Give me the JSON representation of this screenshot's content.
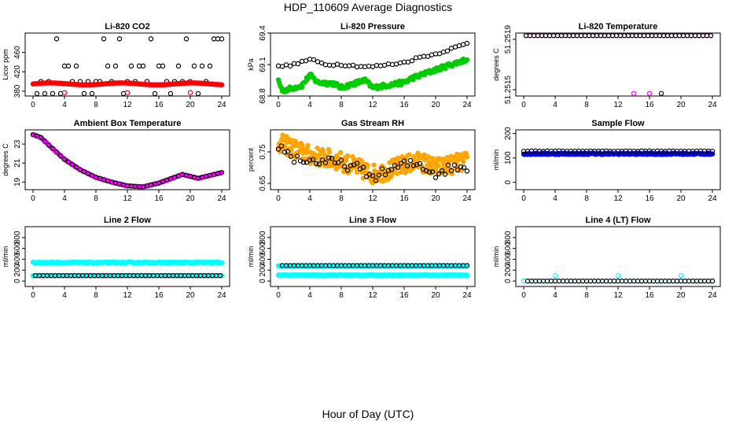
{
  "figure": {
    "title": "HDP_110609  Average Diagnostics",
    "xlabel": "Hour of Day (UTC)"
  },
  "chart_data": [
    {
      "type": "scatter",
      "title": "Li-820 CO2",
      "ylabel": "Licor ppm",
      "xlim": [
        -1,
        25
      ],
      "ylim": [
        370,
        500
      ],
      "xticks": [
        0,
        4,
        8,
        12,
        16,
        20,
        24
      ],
      "yticks": [
        380,
        420,
        460
      ],
      "series": [
        {
          "color": "#000000",
          "style": "ring",
          "pattern": "step_levels",
          "levels": [
            375,
            400,
            432,
            488
          ],
          "x_start": 0.5,
          "x_end": 24,
          "x_step": 0.5
        },
        {
          "color": "#ff0000",
          "style": "dot",
          "pattern": "wave",
          "x_start": 0,
          "x_end": 24,
          "x_step": 0.1,
          "y_base": 395,
          "y_amp": 2,
          "y_period": 9
        },
        {
          "color": "#ff0000",
          "style": "ring",
          "points": [
            [
              4,
              377
            ],
            [
              12,
              377
            ],
            [
              20,
              377
            ]
          ]
        }
      ]
    },
    {
      "type": "scatter",
      "title": "Li-820 Pressure",
      "ylabel": "kPa",
      "xlim": [
        -1,
        25
      ],
      "ylim": [
        68.8,
        69.4
      ],
      "xticks": [
        0,
        4,
        8,
        12,
        16,
        20,
        24
      ],
      "yticks": [
        68.8,
        69.1,
        69.4
      ],
      "series": [
        {
          "color": "#00cc00",
          "style": "dot",
          "pattern": "line_points",
          "anchors": [
            [
              0,
              68.95
            ],
            [
              0.5,
              68.85
            ],
            [
              3,
              68.9
            ],
            [
              4,
              69.0
            ],
            [
              5,
              68.93
            ],
            [
              7,
              68.92
            ],
            [
              8,
              68.88
            ],
            [
              11,
              68.95
            ],
            [
              12,
              68.88
            ],
            [
              16,
              68.93
            ],
            [
              17,
              68.97
            ],
            [
              20,
              69.05
            ],
            [
              22,
              69.1
            ],
            [
              24,
              69.15
            ]
          ],
          "x_step": 0.12,
          "jitter": 0.02
        },
        {
          "color": "#000000",
          "style": "ring",
          "pattern": "line_points",
          "anchors": [
            [
              0,
              69.08
            ],
            [
              2,
              69.1
            ],
            [
              4,
              69.15
            ],
            [
              6,
              69.1
            ],
            [
              8,
              69.1
            ],
            [
              11,
              69.08
            ],
            [
              12,
              69.08
            ],
            [
              14,
              69.1
            ],
            [
              16,
              69.12
            ],
            [
              18,
              69.17
            ],
            [
              20,
              69.2
            ],
            [
              22,
              69.25
            ],
            [
              24,
              69.3
            ]
          ],
          "x_step": 0.5,
          "jitter": 0.01
        }
      ]
    },
    {
      "type": "scatter",
      "title": "Li-820 Temperature",
      "ylabel": "degrees C",
      "xlim": [
        -1,
        25
      ],
      "ylim": [
        51.25145,
        51.25195
      ],
      "xticks": [
        0,
        4,
        8,
        12,
        16,
        20,
        24
      ],
      "yticks": [
        51.2515,
        51.2519
      ],
      "series": [
        {
          "color": "#ff00ff",
          "style": "ring",
          "pattern": "flat",
          "x_start": 0.3,
          "x_end": 24,
          "x_step": 0.5,
          "y": 51.25193
        },
        {
          "color": "#000000",
          "style": "ring",
          "pattern": "flat",
          "x_start": 0.3,
          "x_end": 24,
          "x_step": 0.5,
          "y": 51.25193
        },
        {
          "color": "#ff00ff",
          "style": "ring",
          "points": [
            [
              14,
              51.25147
            ],
            [
              16,
              51.25147
            ]
          ]
        },
        {
          "color": "#000000",
          "style": "ring",
          "points": [
            [
              17.5,
              51.25147
            ]
          ]
        }
      ]
    },
    {
      "type": "scatter",
      "title": "Ambient Box Temperature",
      "ylabel": "degrees C",
      "xlim": [
        -1,
        25
      ],
      "ylim": [
        18.2,
        24.5
      ],
      "xticks": [
        0,
        4,
        8,
        12,
        16,
        20,
        24
      ],
      "yticks": [
        19,
        21,
        23
      ],
      "series": [
        {
          "color": "#ff00ff",
          "style": "dot",
          "pattern": "line_points",
          "anchors": [
            [
              0,
              24.0
            ],
            [
              1,
              23.7
            ],
            [
              2,
              22.9
            ],
            [
              4,
              21.4
            ],
            [
              6,
              20.3
            ],
            [
              8,
              19.5
            ],
            [
              10,
              19.0
            ],
            [
              12,
              18.6
            ],
            [
              14,
              18.5
            ],
            [
              16,
              18.9
            ],
            [
              18,
              19.5
            ],
            [
              19,
              19.8
            ],
            [
              20,
              19.6
            ],
            [
              21,
              19.4
            ],
            [
              22,
              19.6
            ],
            [
              24,
              20.0
            ]
          ],
          "x_step": 0.1,
          "jitter": 0
        },
        {
          "color": "#000000",
          "style": "ring",
          "pattern": "line_points",
          "anchors": [
            [
              0,
              24.0
            ],
            [
              1,
              23.7
            ],
            [
              2,
              22.9
            ],
            [
              4,
              21.4
            ],
            [
              6,
              20.3
            ],
            [
              8,
              19.5
            ],
            [
              10,
              19.0
            ],
            [
              12,
              18.6
            ],
            [
              14,
              18.5
            ],
            [
              16,
              18.9
            ],
            [
              18,
              19.5
            ],
            [
              19,
              19.8
            ],
            [
              20,
              19.6
            ],
            [
              21,
              19.4
            ],
            [
              22,
              19.6
            ],
            [
              24,
              20.0
            ]
          ],
          "x_step": 0.5,
          "jitter": 0
        }
      ]
    },
    {
      "type": "scatter",
      "title": "Gas Stream RH",
      "ylabel": "percent",
      "xlim": [
        -1,
        25
      ],
      "ylim": [
        0.63,
        0.82
      ],
      "xticks": [
        0,
        4,
        8,
        12,
        16,
        20,
        24
      ],
      "yticks": [
        0.65,
        0.75
      ],
      "series": [
        {
          "color": "#ffa500",
          "style": "dot",
          "pattern": "line_points",
          "anchors": [
            [
              0,
              0.78
            ],
            [
              2,
              0.76
            ],
            [
              4,
              0.74
            ],
            [
              6,
              0.73
            ],
            [
              8,
              0.72
            ],
            [
              10,
              0.7
            ],
            [
              12,
              0.68
            ],
            [
              14,
              0.69
            ],
            [
              16,
              0.71
            ],
            [
              18,
              0.72
            ],
            [
              20,
              0.7
            ],
            [
              22,
              0.71
            ],
            [
              24,
              0.72
            ]
          ],
          "x_step": 0.08,
          "jitter": 0.03
        },
        {
          "color": "#000000",
          "style": "ring",
          "pattern": "line_points",
          "anchors": [
            [
              0,
              0.77
            ],
            [
              2,
              0.73
            ],
            [
              4,
              0.72
            ],
            [
              6,
              0.72
            ],
            [
              8,
              0.71
            ],
            [
              10,
              0.7
            ],
            [
              12,
              0.67
            ],
            [
              14,
              0.69
            ],
            [
              16,
              0.71
            ],
            [
              18,
              0.71
            ],
            [
              20,
              0.68
            ],
            [
              22,
              0.7
            ],
            [
              24,
              0.7
            ]
          ],
          "x_step": 0.4,
          "jitter": 0.015
        }
      ]
    },
    {
      "type": "scatter",
      "title": "Sample Flow",
      "ylabel": "ml/min",
      "xlim": [
        -1,
        25
      ],
      "ylim": [
        -30,
        215
      ],
      "xticks": [
        0,
        4,
        8,
        12,
        16,
        20,
        24
      ],
      "yticks": [
        0,
        100,
        200
      ],
      "series": [
        {
          "color": "#0000ff",
          "style": "dot",
          "pattern": "flat",
          "x_start": 0,
          "x_end": 24,
          "x_step": 0.1,
          "y": 117,
          "jitter": 3
        },
        {
          "color": "#000000",
          "style": "ring",
          "pattern": "flat",
          "x_start": 0,
          "x_end": 24,
          "x_step": 0.5,
          "y": 128,
          "jitter": 1
        }
      ]
    },
    {
      "type": "scatter",
      "title": "Line 2 Flow",
      "ylabel": "ml/min",
      "xlim": [
        -1,
        25
      ],
      "ylim": [
        -100,
        1000
      ],
      "xticks": [
        0,
        4,
        8,
        12,
        16,
        20,
        24
      ],
      "yticks": [
        0,
        200,
        400,
        600,
        800
      ],
      "series": [
        {
          "color": "#00ffff",
          "style": "dot",
          "pattern": "flat",
          "x_start": 0,
          "x_end": 24,
          "x_step": 0.1,
          "y": 340,
          "jitter": 10
        },
        {
          "color": "#00ffff",
          "style": "dot",
          "pattern": "flat",
          "x_start": 0,
          "x_end": 24,
          "x_step": 0.1,
          "y": 100,
          "jitter": 0
        },
        {
          "color": "#000000",
          "style": "ring",
          "pattern": "flat",
          "x_start": 0.3,
          "x_end": 24,
          "x_step": 0.5,
          "y": 100,
          "jitter": 0
        }
      ]
    },
    {
      "type": "scatter",
      "title": "Line 3 Flow",
      "ylabel": "ml/min",
      "xlim": [
        -1,
        25
      ],
      "ylim": [
        -100,
        1000
      ],
      "xticks": [
        0,
        4,
        8,
        12,
        16,
        20,
        24
      ],
      "yticks": [
        0,
        200,
        400,
        600,
        800
      ],
      "series": [
        {
          "color": "#00ffff",
          "style": "dot",
          "pattern": "flat",
          "x_start": 0,
          "x_end": 24,
          "x_step": 0.1,
          "y": 110,
          "jitter": 5
        },
        {
          "color": "#00ffff",
          "style": "dot",
          "pattern": "flat",
          "x_start": 0,
          "x_end": 24,
          "x_step": 0.1,
          "y": 280,
          "jitter": 0
        },
        {
          "color": "#000000",
          "style": "ring",
          "pattern": "flat",
          "x_start": 0.5,
          "x_end": 24,
          "x_step": 0.5,
          "y": 285,
          "jitter": 0
        }
      ]
    },
    {
      "type": "scatter",
      "title": "Line 4 (LT) Flow",
      "ylabel": "ml/min",
      "xlim": [
        -1,
        25
      ],
      "ylim": [
        -100,
        1000
      ],
      "xticks": [
        0,
        4,
        8,
        12,
        16,
        20,
        24
      ],
      "yticks": [
        0,
        200,
        400,
        600,
        800
      ],
      "series": [
        {
          "color": "#00ffff",
          "style": "ring",
          "pattern": "flat",
          "x_start": 0,
          "x_end": 24,
          "x_step": 0.5,
          "y": 0,
          "jitter": 0
        },
        {
          "color": "#000000",
          "style": "ring",
          "pattern": "flat",
          "x_start": 0.5,
          "x_end": 24,
          "x_step": 0.5,
          "y": 0,
          "jitter": 0
        },
        {
          "color": "#00ffff",
          "style": "ring",
          "points": [
            [
              4,
              100
            ],
            [
              12,
              100
            ],
            [
              20,
              100
            ]
          ]
        }
      ]
    }
  ]
}
